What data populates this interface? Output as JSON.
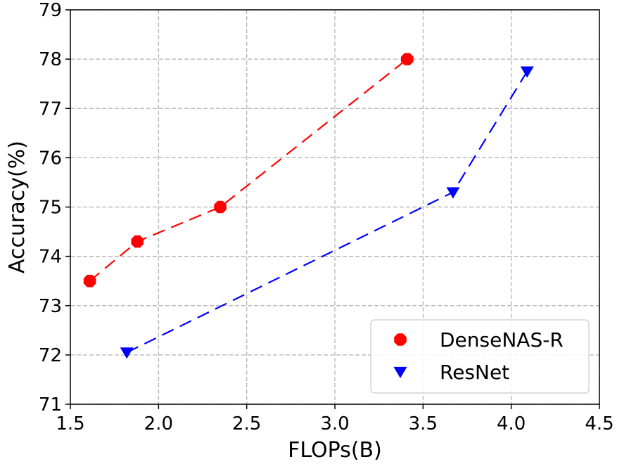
{
  "chart_data": {
    "type": "line",
    "xlabel": "FLOPs(B)",
    "ylabel": "Accuracy(%)",
    "xlim": [
      1.5,
      4.5
    ],
    "ylim": [
      71,
      79
    ],
    "xticks": [
      "1.5",
      "2.0",
      "2.5",
      "3.0",
      "3.5",
      "4.0",
      "4.5"
    ],
    "yticks": [
      "71",
      "72",
      "73",
      "74",
      "75",
      "76",
      "77",
      "78",
      "79"
    ],
    "grid": true,
    "legend_position": "bottom-right",
    "series": [
      {
        "name": "DenseNAS-R",
        "color": "#ff0000",
        "marker": "octagon",
        "line_style": "dashed",
        "x": [
          1.61,
          1.88,
          2.35,
          3.41
        ],
        "y": [
          73.5,
          74.3,
          75.0,
          78.0
        ]
      },
      {
        "name": "ResNet",
        "color": "#0000ff",
        "marker": "triangle-down",
        "line_style": "dashed",
        "x": [
          1.82,
          3.67,
          4.09
        ],
        "y": [
          72.05,
          75.3,
          77.75
        ]
      }
    ]
  }
}
